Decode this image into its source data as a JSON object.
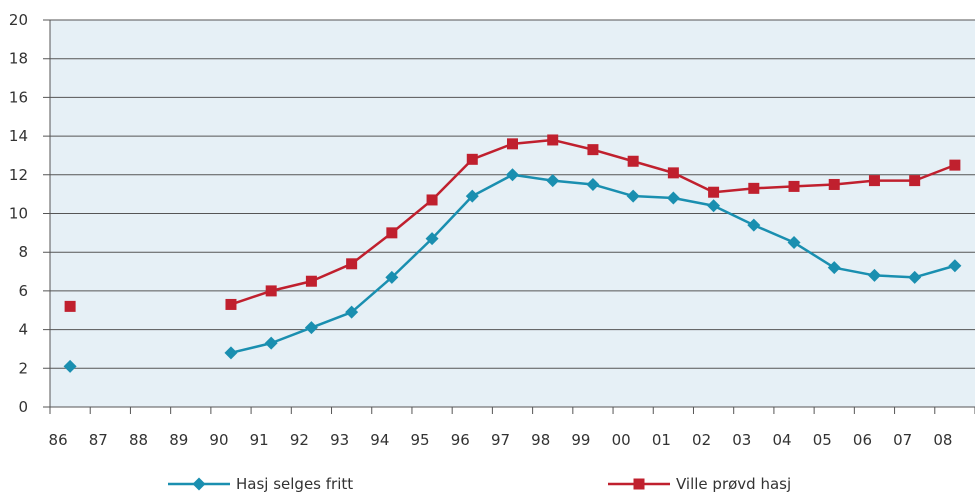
{
  "chart_data": {
    "type": "line",
    "title": "",
    "xlabel": "",
    "ylabel": "",
    "categories": [
      "86",
      "87",
      "88",
      "89",
      "90",
      "91",
      "92",
      "93",
      "94",
      "95",
      "96",
      "97",
      "98",
      "99",
      "00",
      "01",
      "02",
      "03",
      "04",
      "05",
      "06",
      "07",
      "08"
    ],
    "ylim": [
      0,
      20
    ],
    "yticks": [
      0,
      2,
      4,
      6,
      8,
      10,
      12,
      14,
      16,
      18,
      20
    ],
    "grid": true,
    "plot_background": "#e6f0f6",
    "gridline_color": "#555555",
    "legend_position": "bottom",
    "series": [
      {
        "name": "Hasj selges fritt",
        "color": "#1a8fb0",
        "marker": "diamond",
        "values": [
          2.1,
          null,
          null,
          null,
          2.8,
          3.3,
          4.1,
          4.9,
          6.7,
          8.7,
          10.9,
          12.0,
          11.7,
          11.5,
          10.9,
          10.8,
          10.4,
          9.4,
          8.5,
          7.2,
          6.8,
          6.7,
          7.3
        ]
      },
      {
        "name": "Ville prøvd hasj",
        "color": "#c0202e",
        "marker": "square",
        "values": [
          5.2,
          null,
          null,
          null,
          5.3,
          6.0,
          6.5,
          7.4,
          9.0,
          10.7,
          12.8,
          13.6,
          13.8,
          13.3,
          12.7,
          12.1,
          11.1,
          11.3,
          11.4,
          11.5,
          11.7,
          11.7,
          12.5
        ]
      }
    ]
  }
}
